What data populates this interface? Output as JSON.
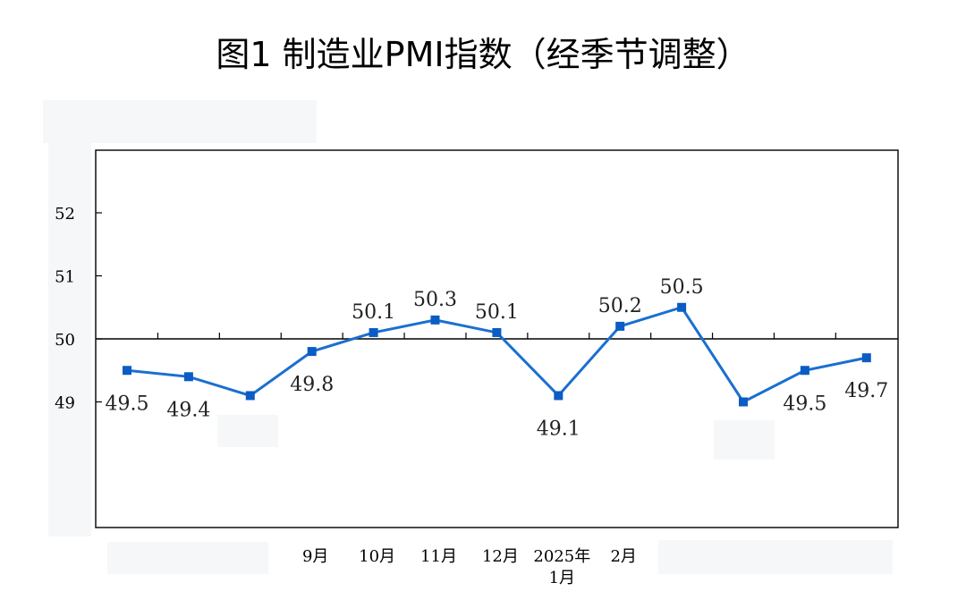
{
  "title": "图1  制造业PMI指数（经季节调整）",
  "chart_data": {
    "type": "line",
    "title": "图1  制造业PMI指数（经季节调整）",
    "xlabel": "",
    "ylabel": "",
    "ylim": [
      47,
      53
    ],
    "yticks": [
      "52",
      "51",
      "50",
      "49"
    ],
    "reference_line": 50,
    "grid": false,
    "categories": [
      "",
      "",
      "",
      "9月",
      "10月",
      "11月",
      "12月",
      "2025年\n1月",
      "2月",
      "",
      "",
      "",
      ""
    ],
    "values": [
      49.5,
      49.4,
      49.1,
      49.8,
      50.1,
      50.3,
      50.1,
      49.1,
      50.2,
      50.5,
      49.0,
      49.5,
      49.7
    ],
    "point_labels": [
      "49.5",
      "49.4",
      "",
      "49.8",
      "50.1",
      "50.3",
      "50.1",
      "49.1",
      "50.2",
      "50.5",
      "",
      "49.5",
      "49.7"
    ],
    "line_color": "#1a6fd1",
    "marker_color": "#0b5cc4"
  }
}
